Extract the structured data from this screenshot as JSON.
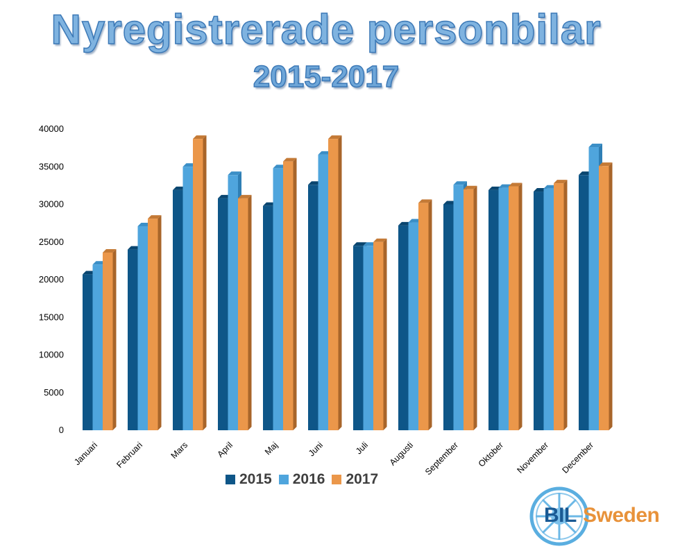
{
  "title": "Nyregistrerade personbilar",
  "subtitle": "2015-2017",
  "y_axis": {
    "ticks": [
      "40000",
      "35000",
      "30000",
      "25000",
      "20000",
      "15000",
      "10000",
      "5000",
      "0"
    ]
  },
  "legend": [
    {
      "label": "2015",
      "color": "#0e5688"
    },
    {
      "label": "2016",
      "color": "#4fa5dd"
    },
    {
      "label": "2017",
      "color": "#eb974a"
    }
  ],
  "logo": {
    "part1": "BIL",
    "part2": "Sweden"
  },
  "chart_data": {
    "type": "bar",
    "title": "Nyregistrerade personbilar 2015-2017",
    "xlabel": "",
    "ylabel": "",
    "ylim": [
      0,
      40000
    ],
    "grid": false,
    "legend_position": "bottom",
    "categories": [
      "Januari",
      "Februari",
      "Mars",
      "April",
      "Maj",
      "Juni",
      "Juli",
      "Augusti",
      "September",
      "Oktober",
      "November",
      "December"
    ],
    "series": [
      {
        "name": "2015",
        "color": "#0e5688",
        "values": [
          20700,
          24000,
          31900,
          30800,
          29800,
          32600,
          24500,
          27200,
          30000,
          31900,
          31700,
          33900
        ]
      },
      {
        "name": "2016",
        "color": "#4fa5dd",
        "values": [
          22000,
          27100,
          35000,
          33900,
          34800,
          36600,
          24500,
          27600,
          32600,
          32200,
          32100,
          37600
        ]
      },
      {
        "name": "2017",
        "color": "#eb974a",
        "values": [
          23600,
          28100,
          38700,
          30800,
          35700,
          38700,
          25000,
          30200,
          32000,
          32400,
          32800,
          35100
        ]
      }
    ]
  }
}
